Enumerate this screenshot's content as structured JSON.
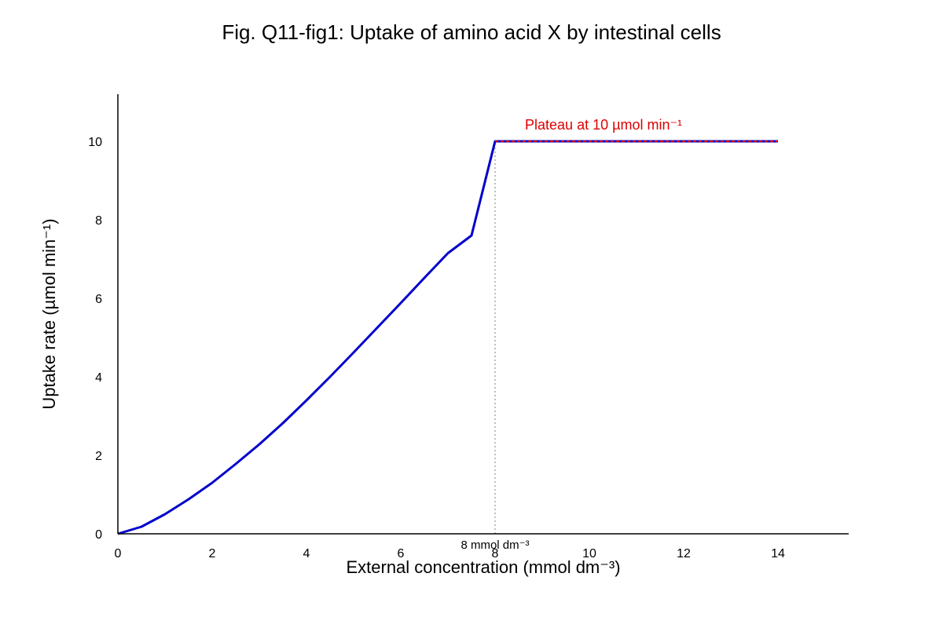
{
  "chart_data": {
    "type": "line",
    "title": "Fig. Q11-fig1: Uptake of amino acid X by intestinal cells",
    "xlabel": "External concentration (mmol dm⁻³)",
    "ylabel": "Uptake rate (µmol min⁻¹)",
    "xlim": [
      0,
      15.5
    ],
    "ylim": [
      0,
      11.2
    ],
    "xticks": [
      0,
      2,
      4,
      6,
      8,
      10,
      12,
      14
    ],
    "yticks": [
      0,
      2,
      4,
      6,
      8,
      10
    ],
    "grid": false,
    "series": [
      {
        "x": [
          0,
          0.5,
          1,
          1.5,
          2,
          2.5,
          3,
          3.5,
          4,
          4.5,
          5,
          5.5,
          6,
          6.5,
          7,
          7.5,
          8,
          9,
          10,
          11,
          12,
          13,
          14
        ],
        "y": [
          0,
          0.18,
          0.5,
          0.88,
          1.3,
          1.78,
          2.28,
          2.82,
          3.4,
          4.0,
          4.62,
          5.25,
          5.88,
          6.52,
          7.15,
          7.6,
          10,
          10,
          10,
          10,
          10,
          10,
          10
        ]
      }
    ],
    "annotations": [
      {
        "text": "Plateau at 10 µmol min⁻¹",
        "x": 10.3,
        "y": 10.4,
        "color": "#dd0000"
      },
      {
        "text": "8 mmol dm⁻³",
        "x": 8,
        "y": -0.3
      }
    ],
    "reference_lines": [
      {
        "orientation": "vertical",
        "x": 8,
        "y_to": 10,
        "style": "dotted",
        "color": "#aaaaaa"
      },
      {
        "orientation": "horizontal",
        "y": 10,
        "x_from": 8,
        "x_to": 14,
        "style": "dashed",
        "color": "#dd0000"
      }
    ],
    "colors": {
      "curve": "#0000cc",
      "plateau": "#dd0000",
      "reference": "#aaaaaa"
    }
  }
}
